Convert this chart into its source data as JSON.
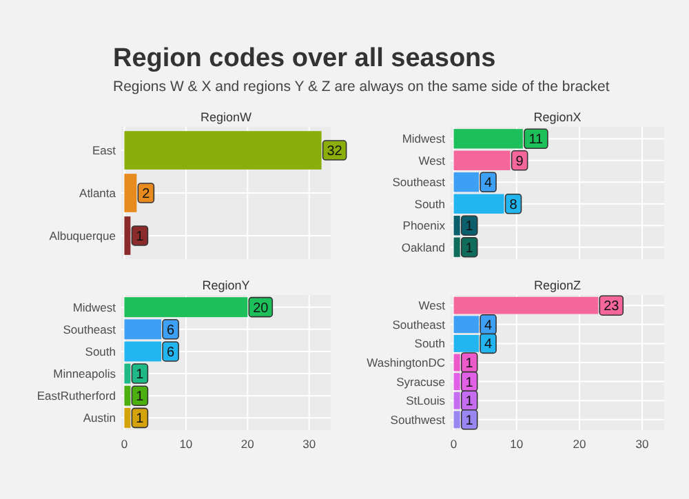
{
  "chart_data": [
    {
      "type": "bar",
      "orientation": "horizontal",
      "title": "RegionW",
      "annotations": [
        "Region codes over all seasons",
        "Regions W & X and regions Y & Z are always on the same side of the bracket"
      ],
      "categories": [
        "East",
        "Atlanta",
        "Albuquerque"
      ],
      "values": [
        32,
        2,
        1
      ],
      "colors": [
        "#8aae0b",
        "#e88b1e",
        "#8b2a2a"
      ],
      "xlim": [
        -0.5,
        33.5
      ],
      "xticks": [
        0,
        10,
        20,
        30
      ],
      "grid": true,
      "data_labels": true,
      "tick_labels": "y"
    },
    {
      "type": "bar",
      "orientation": "horizontal",
      "title": "RegionX",
      "categories": [
        "Midwest",
        "West",
        "Southeast",
        "South",
        "Phoenix",
        "Oakland"
      ],
      "values": [
        11,
        9,
        4,
        8,
        1,
        1
      ],
      "colors": [
        "#1dbf5a",
        "#f5679b",
        "#3ea0f5",
        "#22b5ef",
        "#0b5e6b",
        "#0f6b5a"
      ],
      "xlim": [
        -0.5,
        33.5
      ],
      "xticks": [
        0,
        10,
        20,
        30
      ],
      "grid": true,
      "data_labels": true,
      "tick_labels": "y"
    },
    {
      "type": "bar",
      "orientation": "horizontal",
      "title": "RegionY",
      "categories": [
        "Midwest",
        "Southeast",
        "South",
        "Minneapolis",
        "EastRutherford",
        "Austin"
      ],
      "values": [
        20,
        6,
        6,
        1,
        1,
        1
      ],
      "colors": [
        "#1dbf5a",
        "#3ea0f5",
        "#22b5ef",
        "#1fb987",
        "#4caf10",
        "#d4a20a"
      ],
      "xlim": [
        -0.5,
        33.5
      ],
      "xticks": [
        0,
        10,
        20,
        30
      ],
      "grid": true,
      "data_labels": true
    },
    {
      "type": "bar",
      "orientation": "horizontal",
      "title": "RegionZ",
      "categories": [
        "West",
        "Southeast",
        "South",
        "WashingtonDC",
        "Syracuse",
        "StLouis",
        "Southwest"
      ],
      "values": [
        23,
        4,
        4,
        1,
        1,
        1,
        1
      ],
      "colors": [
        "#f5679b",
        "#3ea0f5",
        "#22b5ef",
        "#ec59c8",
        "#e060e6",
        "#c66cf0",
        "#9a86f0"
      ],
      "xlim": [
        -0.5,
        33.5
      ],
      "xticks": [
        0,
        10,
        20,
        30
      ],
      "grid": true,
      "data_labels": true
    }
  ]
}
